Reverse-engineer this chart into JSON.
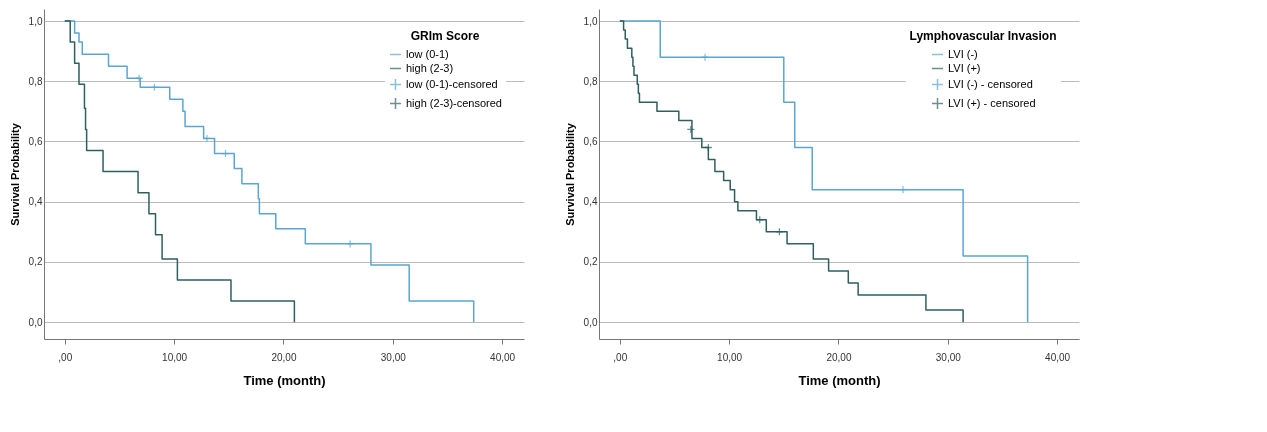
{
  "chart_data": [
    {
      "type": "step",
      "xlabel": "Time (month)",
      "ylabel": "Survival Probability",
      "legend_title": "GRIm Score",
      "legend": "top right",
      "grid": "y",
      "xlim": [
        -1.9,
        42
      ],
      "ylim": [
        -0.056,
        1.04
      ],
      "xticks": [
        {
          "value": 0,
          "label": ",00"
        },
        {
          "value": 10,
          "label": "10,00"
        },
        {
          "value": 20,
          "label": "20,00"
        },
        {
          "value": 30,
          "label": "30,00"
        },
        {
          "value": 40,
          "label": "40,00"
        }
      ],
      "yticks": [
        {
          "value": 0,
          "label": "0,0"
        },
        {
          "value": 0.2,
          "label": "0,2"
        },
        {
          "value": 0.4,
          "label": "0,4"
        },
        {
          "value": 0.6,
          "label": "0,6"
        },
        {
          "value": 0.8,
          "label": "0,8"
        },
        {
          "value": 1,
          "label": "1,0"
        }
      ],
      "series": [
        {
          "name": "low (0-1)",
          "color": "#5aa6d0",
          "x": [
            0,
            0.9,
            1.3,
            1.6,
            4.0,
            5.7,
            6.9,
            9.6,
            10.8,
            11.0,
            12.7,
            13.7,
            15.5,
            16.2,
            17.7,
            17.8,
            19.3,
            22.0,
            28.0,
            31.5,
            37.4
          ],
          "values": [
            1,
            0.96,
            0.93,
            0.89,
            0.85,
            0.81,
            0.78,
            0.74,
            0.7,
            0.65,
            0.61,
            0.56,
            0.51,
            0.46,
            0.41,
            0.36,
            0.31,
            0.26,
            0.19,
            0.07,
            0
          ]
        },
        {
          "name": "high (2-3)",
          "color": "#2f5f5f",
          "x": [
            0,
            0.5,
            0.9,
            1.3,
            1.8,
            1.9,
            2.0,
            3.5,
            6.7,
            7.7,
            8.3,
            8.9,
            10.3,
            15.2,
            21.0
          ],
          "values": [
            1,
            0.93,
            0.86,
            0.79,
            0.71,
            0.64,
            0.57,
            0.5,
            0.43,
            0.36,
            0.29,
            0.21,
            0.14,
            0.07,
            0
          ]
        },
        {
          "name": "low (0-1)-censored",
          "type": "scatter",
          "marker": "cross",
          "color": "#5aa6d0",
          "x": [
            6.8,
            8.2,
            13.0,
            14.7,
            26.1
          ],
          "values": [
            0.81,
            0.78,
            0.61,
            0.56,
            0.26
          ]
        },
        {
          "name": "high (2-3)-censored",
          "type": "scatter",
          "marker": "cross",
          "color": "#2f5f5f"
        }
      ]
    },
    {
      "type": "step",
      "xlabel": "Time (month)",
      "ylabel": "Survival Probability",
      "legend_title": "Lymphovascular Invasion",
      "legend": "top right",
      "grid": "y",
      "xlim": [
        -1.9,
        42
      ],
      "ylim": [
        -0.056,
        1.04
      ],
      "xticks": [
        {
          "value": 0,
          "label": ",00"
        },
        {
          "value": 10,
          "label": "10,00"
        },
        {
          "value": 20,
          "label": "20,00"
        },
        {
          "value": 30,
          "label": "30,00"
        },
        {
          "value": 40,
          "label": "40,00"
        }
      ],
      "yticks": [
        {
          "value": 0,
          "label": "0,0"
        },
        {
          "value": 0.2,
          "label": "0,2"
        },
        {
          "value": 0.4,
          "label": "0,4"
        },
        {
          "value": 0.6,
          "label": "0,6"
        },
        {
          "value": 0.8,
          "label": "0,8"
        },
        {
          "value": 1,
          "label": "1,0"
        }
      ],
      "series": [
        {
          "name": "LVI (-)",
          "color": "#5aa6d0",
          "x": [
            0,
            3.7,
            15.0,
            16.0,
            17.6,
            31.4,
            37.3
          ],
          "values": [
            1,
            0.88,
            0.73,
            0.58,
            0.44,
            0.22,
            0
          ]
        },
        {
          "name": "LVI (+)",
          "color": "#2f5f5f",
          "x": [
            0,
            0.35,
            0.5,
            0.7,
            1.1,
            1.2,
            1.3,
            1.6,
            1.7,
            1.8,
            3.4,
            5.4,
            6.6,
            7.5,
            8.1,
            8.7,
            9.5,
            10.1,
            10.5,
            10.8,
            12.5,
            13.4,
            15.3,
            17.7,
            19.1,
            20.9,
            21.8,
            28.0,
            31.4
          ],
          "values": [
            1,
            0.97,
            0.94,
            0.91,
            0.88,
            0.85,
            0.82,
            0.79,
            0.76,
            0.73,
            0.7,
            0.67,
            0.61,
            0.58,
            0.54,
            0.5,
            0.47,
            0.44,
            0.4,
            0.37,
            0.34,
            0.3,
            0.26,
            0.21,
            0.17,
            0.13,
            0.09,
            0.04,
            0
          ]
        },
        {
          "name": "LVI (-) - censored",
          "type": "scatter",
          "marker": "cross",
          "color": "#5aa6d0",
          "x": [
            7.8,
            25.9
          ],
          "values": [
            0.88,
            0.44
          ]
        },
        {
          "name": "LVI (+) - censored",
          "type": "scatter",
          "marker": "cross",
          "color": "#2f5f5f",
          "x": [
            6.5,
            8.1,
            12.8,
            14.6
          ],
          "values": [
            0.64,
            0.58,
            0.34,
            0.3
          ]
        }
      ]
    }
  ]
}
